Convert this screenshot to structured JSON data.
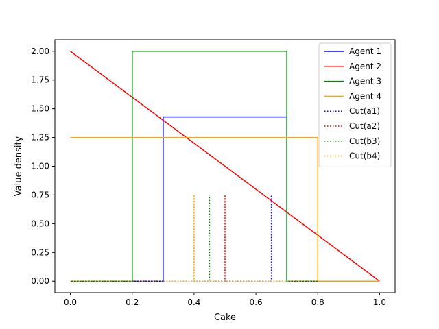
{
  "chart_data": {
    "type": "line",
    "xlabel": "Cake",
    "ylabel": "Value density",
    "xlim": [
      -0.05,
      1.05
    ],
    "ylim": [
      -0.1,
      2.1
    ],
    "xticks": [
      0.0,
      0.2,
      0.4,
      0.6,
      0.8,
      1.0
    ],
    "xtick_labels": [
      "0.0",
      "0.2",
      "0.4",
      "0.6",
      "0.8",
      "1.0"
    ],
    "yticks": [
      0.0,
      0.25,
      0.5,
      0.75,
      1.0,
      1.25,
      1.5,
      1.75,
      2.0
    ],
    "ytick_labels": [
      "0.00",
      "0.25",
      "0.50",
      "0.75",
      "1.00",
      "1.25",
      "1.50",
      "1.75",
      "2.00"
    ],
    "grid": false,
    "legend_position": "top-right",
    "series": [
      {
        "name": "Agent 1",
        "color": "#0000ff",
        "style": "solid",
        "x": [
          0,
          0.3,
          0.3,
          0.7,
          0.7,
          1.0
        ],
        "y": [
          0,
          0,
          1.4286,
          1.4286,
          0,
          0
        ]
      },
      {
        "name": "Agent 2",
        "color": "#ff0000",
        "style": "solid",
        "x": [
          0,
          1.0
        ],
        "y": [
          2.0,
          0
        ]
      },
      {
        "name": "Agent 3",
        "color": "#008000",
        "style": "solid",
        "x": [
          0,
          0.2,
          0.2,
          0.7,
          0.7,
          1.0
        ],
        "y": [
          0,
          0,
          2.0,
          2.0,
          0,
          0
        ]
      },
      {
        "name": "Agent 4",
        "color": "#ffa500",
        "style": "solid",
        "x": [
          0,
          0.8,
          0.8,
          1.0
        ],
        "y": [
          1.25,
          1.25,
          0,
          0
        ]
      },
      {
        "name": "Cut(a1)",
        "color": "#0000ff",
        "style": "dotted",
        "x": [
          0,
          0.65,
          0.65,
          0.65,
          1.0
        ],
        "y": [
          0,
          0,
          0.75,
          0,
          0
        ]
      },
      {
        "name": "Cut(a2)",
        "color": "#ff0000",
        "style": "dotted",
        "x": [
          0,
          0.5,
          0.5,
          0.5,
          1.0
        ],
        "y": [
          0,
          0,
          0.75,
          0,
          0
        ]
      },
      {
        "name": "Cut(b3)",
        "color": "#008000",
        "style": "dotted",
        "x": [
          0,
          0.45,
          0.45,
          0.45,
          1.0
        ],
        "y": [
          0,
          0,
          0.75,
          0,
          0
        ]
      },
      {
        "name": "Cut(b4)",
        "color": "#ffa500",
        "style": "dotted",
        "x": [
          0,
          0.4,
          0.4,
          0.4,
          1.0
        ],
        "y": [
          0,
          0,
          0.75,
          0,
          0
        ]
      }
    ]
  }
}
